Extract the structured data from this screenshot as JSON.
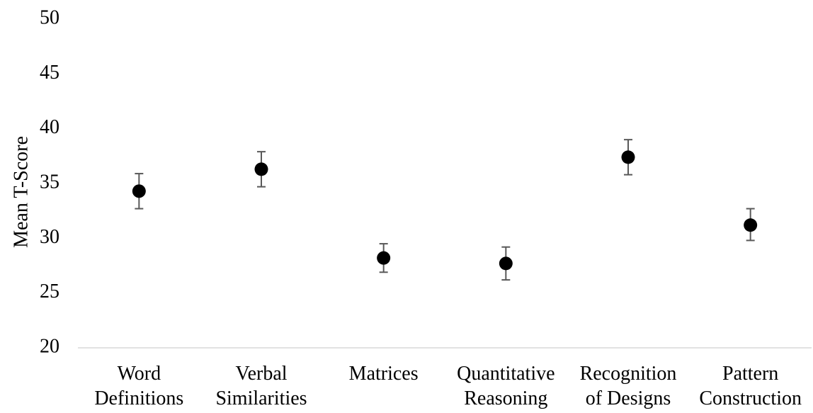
{
  "chart_data": {
    "type": "scatter",
    "title": "",
    "xlabel": "",
    "ylabel": "Mean T-Score",
    "ylim": [
      20,
      50
    ],
    "yticks": [
      20,
      25,
      30,
      35,
      40,
      45,
      50
    ],
    "grid": false,
    "legend": "none",
    "categories": [
      [
        "Word",
        "Definitions"
      ],
      [
        "Verbal",
        "Similarities"
      ],
      [
        "Matrices",
        ""
      ],
      [
        "Quantitative",
        "Reasoning"
      ],
      [
        "Recognition",
        "of Designs"
      ],
      [
        "Pattern",
        "Construction"
      ]
    ],
    "series": [
      {
        "values": [
          34.3,
          36.3,
          28.2,
          27.7,
          37.4,
          31.2
        ],
        "error_low": [
          32.7,
          34.7,
          26.9,
          26.2,
          35.8,
          29.8
        ],
        "error_high": [
          35.9,
          37.9,
          29.5,
          29.2,
          39.0,
          32.7
        ]
      }
    ],
    "colors": {
      "marker": "#000000",
      "error_bar": "#595959",
      "axis_line": "#d9d9d9"
    }
  }
}
